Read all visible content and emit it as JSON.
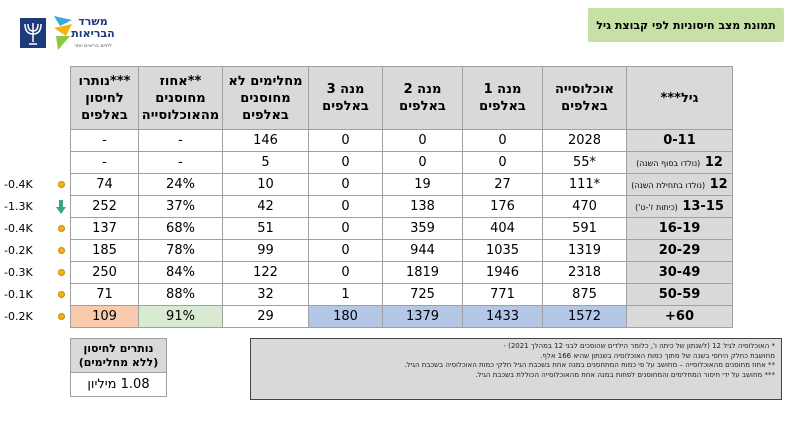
{
  "header": {
    "title": "תמונת מצב חיסוניות לפי קבוצת גיל",
    "logo_name": "משרד הבריאות",
    "logo_tagline": "לחיים בריאים יותר"
  },
  "table": {
    "columns": [
      "גיל***",
      "אוכלוסייה באלפים",
      "מנה 1 באלפים",
      "מנה 2 באלפים",
      "מנה 3 באלפים",
      "מחלימים לא מחוסנים באלפים",
      "**אחוז מחוסנים מהאוכלוסייה",
      "***נותרו לחיסון באלפים"
    ],
    "rows": [
      {
        "age": "0-11",
        "age_note": "",
        "population": "2028",
        "dose1": "0",
        "dose2": "0",
        "dose3": "0",
        "recovered": "146",
        "pct": "-",
        "remaining": "-",
        "delta": ""
      },
      {
        "age": "12",
        "age_note": "(נולדו בסוף השנה)",
        "population": "*55",
        "dose1": "0",
        "dose2": "0",
        "dose3": "0",
        "recovered": "5",
        "pct": "-",
        "remaining": "-",
        "delta": ""
      },
      {
        "age": "12",
        "age_note": "(נולדו בתחילת השנה)",
        "population": "*111",
        "dose1": "27",
        "dose2": "19",
        "dose3": "0",
        "recovered": "10",
        "pct": "24%",
        "remaining": "74",
        "delta": "-0.4K"
      },
      {
        "age": "13-15",
        "age_note": "(כיתות ז'-ט')",
        "population": "470",
        "dose1": "176",
        "dose2": "138",
        "dose3": "0",
        "recovered": "42",
        "pct": "37%",
        "remaining": "252",
        "delta": "-1.3K"
      },
      {
        "age": "16-19",
        "age_note": "",
        "population": "591",
        "dose1": "404",
        "dose2": "359",
        "dose3": "0",
        "recovered": "51",
        "pct": "68%",
        "remaining": "137",
        "delta": "-0.4K"
      },
      {
        "age": "20-29",
        "age_note": "",
        "population": "1319",
        "dose1": "1035",
        "dose2": "944",
        "dose3": "0",
        "recovered": "99",
        "pct": "78%",
        "remaining": "185",
        "delta": "-0.2K"
      },
      {
        "age": "30-49",
        "age_note": "",
        "population": "2318",
        "dose1": "1946",
        "dose2": "1819",
        "dose3": "0",
        "recovered": "122",
        "pct": "84%",
        "remaining": "250",
        "delta": "-0.3K"
      },
      {
        "age": "50-59",
        "age_note": "",
        "population": "875",
        "dose1": "771",
        "dose2": "725",
        "dose3": "1",
        "recovered": "32",
        "pct": "88%",
        "remaining": "71",
        "delta": "-0.1K"
      },
      {
        "age": "60+",
        "age_note": "",
        "population": "1572",
        "dose1": "1433",
        "dose2": "1379",
        "dose3": "180",
        "recovered": "29",
        "pct": "91%",
        "remaining": "109",
        "delta": "-0.2K"
      }
    ]
  },
  "remaining_box": {
    "header": "נותרים לחיסון (ללא מחלימים)",
    "value": "1.08 מיליון"
  },
  "notes": [
    "* האוכלוסיה לגיל 12 (לשנתון של כיתה ו', כלומר הילדים שהופכים לבני 12 במהלך 2021) -",
    "מחושבת כחלק היחסי בשנה של מתוך כמות האוכלוסיה בשנתון שהיא 166 אלף.",
    "** אחוז מחוסנים מהאוכלוסייה – מחושב על פי כמות המתחסנים במנה אחת בשכבת הגיל חלקי כמות האוכלוסיה בשכבת הגיל.",
    "*** מחושב על ידי חיסור המחלימים והמחוסנים לפחות במנה אחת מהאוכלוסייה הכוללת בשכבת הגיל."
  ]
}
